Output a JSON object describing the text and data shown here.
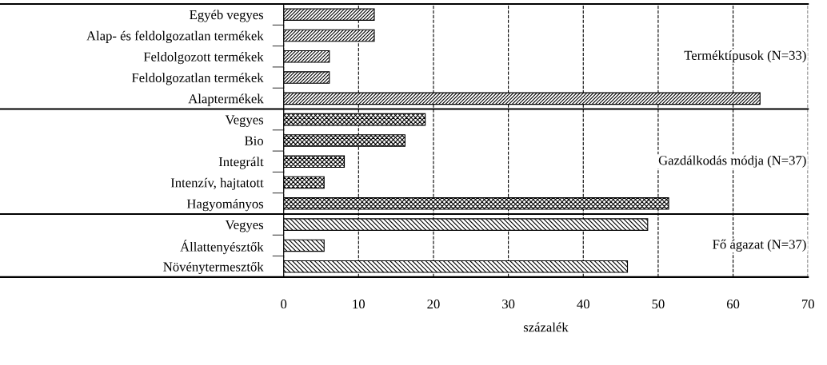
{
  "chart_data": {
    "type": "bar",
    "orientation": "horizontal",
    "xlabel": "százalék",
    "categories": [
      "Egyéb vegyes",
      "Alap- és feldolgozatlan termékek",
      "Feldolgozott termékek",
      "Feldolgozatlan termékek",
      "Alaptermékek",
      "Vegyes",
      "Bio",
      "Integrált",
      "Intenzív, hajtatott",
      "Hagyományos",
      "Vegyes",
      "Állattenyésztők",
      "Növénytermesztők"
    ],
    "series": [
      {
        "color": "#000000",
        "values": [
          12.1,
          12.1,
          6.1,
          6.1,
          63.6,
          null,
          null,
          null,
          null,
          null,
          null,
          null,
          null
        ]
      },
      {
        "color": "#000000",
        "values": [
          null,
          null,
          null,
          null,
          null,
          18.9,
          16.2,
          8.1,
          5.4,
          51.4,
          null,
          null,
          null
        ]
      },
      {
        "color": "#000000",
        "values": [
          null,
          null,
          null,
          null,
          null,
          null,
          null,
          null,
          null,
          null,
          48.6,
          5.4,
          45.9
        ]
      }
    ],
    "annotations": [
      "Terméktípusok (N=33)",
      "Gazdálkodás módja (N=37)",
      "Fő ágazat (N=37)"
    ],
    "xlim": [
      0,
      70
    ],
    "xticks": [
      0,
      10,
      20,
      30,
      40,
      50,
      60,
      70
    ],
    "grid": "x",
    "line_style": "dashed",
    "legend": false
  }
}
